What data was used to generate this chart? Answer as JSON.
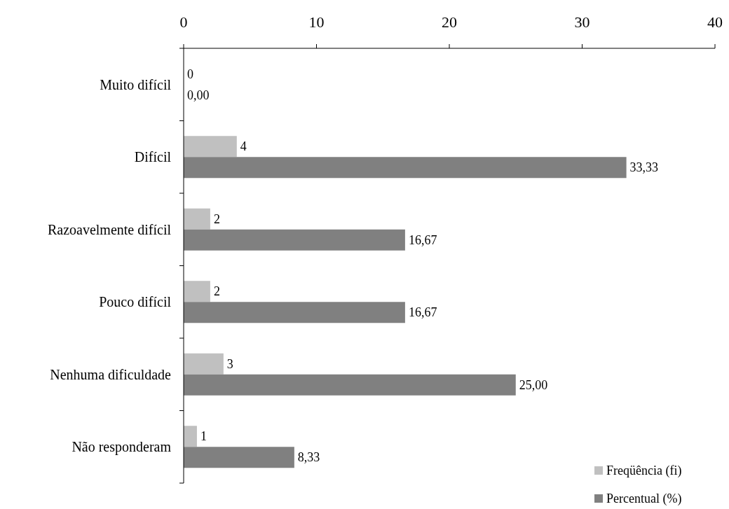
{
  "chart_data": {
    "type": "bar",
    "orientation": "horizontal",
    "categories": [
      "Muito difícil",
      "Difícil",
      "Razoavelmente difícil",
      "Pouco difícil",
      "Nenhuma dificuldade",
      "Não responderam"
    ],
    "series": [
      {
        "name": "Freqüência (fi)",
        "color": "#c0c0c0",
        "values": [
          0,
          4,
          2,
          2,
          3,
          1
        ],
        "value_labels": [
          "0",
          "4",
          "2",
          "2",
          "3",
          "1"
        ]
      },
      {
        "name": "Percentual (%)",
        "color": "#808080",
        "values": [
          0,
          33.33,
          16.67,
          16.67,
          25,
          8.33
        ],
        "value_labels": [
          "0,00",
          "33,33",
          "16,67",
          "16,67",
          "25,00",
          "8,33"
        ]
      }
    ],
    "xlim": [
      0,
      40
    ],
    "xticks": [
      0,
      10,
      20,
      30,
      40
    ],
    "legend": "bottom right"
  }
}
